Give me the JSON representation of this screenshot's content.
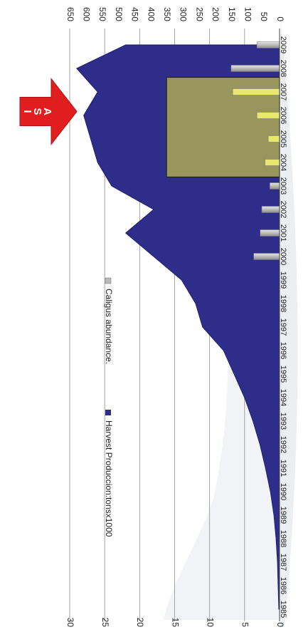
{
  "chart_data": {
    "type": "area",
    "rotation": "90deg clockwise (x axis runs top to bottom)",
    "categories": [
      "1985",
      "1986",
      "1987",
      "1988",
      "1989",
      "1990",
      "1991",
      "1992",
      "1993",
      "1994",
      "1995",
      "1996",
      "1997",
      "1998",
      "1999",
      "2000",
      "2001",
      "2002",
      "2003",
      "2004",
      "2005",
      "2006",
      "2007",
      "2008",
      "2009"
    ],
    "series": [
      {
        "name": "Harvest Produccion:tonsx1000",
        "type": "area",
        "axis": "left",
        "color": "#2e2e8a",
        "values": [
          0.1,
          0.2,
          0.3,
          0.5,
          0.8,
          1.3,
          2.0,
          2.8,
          3.8,
          5.0,
          6.5,
          8.0,
          11.0,
          12.0,
          14.0,
          18.0,
          22.0,
          18.0,
          24.0,
          26.0,
          27.0,
          28.0,
          26.0,
          29.0,
          22.0
        ]
      },
      {
        "name": "Caligus abundance.",
        "type": "bar",
        "axis": "right",
        "color": "#b9b9b9",
        "values": [
          null,
          null,
          null,
          null,
          null,
          null,
          null,
          null,
          null,
          null,
          null,
          null,
          null,
          null,
          null,
          80,
          60,
          55,
          30,
          45,
          35,
          70,
          145,
          150,
          70
        ]
      }
    ],
    "left_axis": {
      "ylim": [
        0,
        30
      ],
      "ticks": [
        "0",
        "5",
        "10",
        "15",
        "20",
        "25",
        "30"
      ]
    },
    "right_axis": {
      "ylim": [
        0,
        650
      ],
      "ticks": [
        "0",
        "50",
        "100",
        "150",
        "200",
        "250",
        "300",
        "350",
        "400",
        "450",
        "500",
        "550",
        "600",
        "650"
      ]
    },
    "highlight_range": [
      "2004",
      "2007"
    ],
    "highlight_color": "#e8e870",
    "annotation": {
      "letters": [
        "I",
        "S",
        "A"
      ],
      "color": "#e01e1e"
    },
    "legend_position": "right",
    "grid": true
  }
}
